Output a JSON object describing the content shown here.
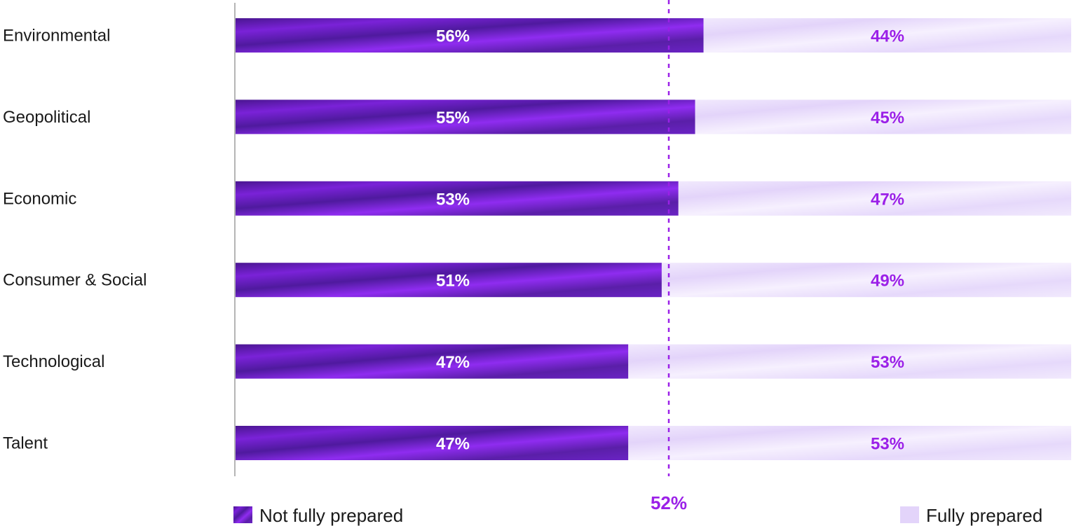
{
  "chart_data": {
    "type": "bar",
    "orientation": "horizontal",
    "stacked": true,
    "categories": [
      "Environmental",
      "Geopolitical",
      "Economic",
      "Consumer & Social",
      "Technological",
      "Talent"
    ],
    "series": [
      {
        "name": "Not fully prepared",
        "values": [
          56,
          55,
          53,
          51,
          47,
          47
        ],
        "value_labels": [
          "56%",
          "55%",
          "53%",
          "51%",
          "47%",
          "47%"
        ]
      },
      {
        "name": "Fully prepared",
        "values": [
          44,
          45,
          47,
          49,
          53,
          53
        ],
        "value_labels": [
          "44%",
          "45%",
          "47%",
          "49%",
          "53%",
          "53%"
        ]
      }
    ],
    "xlim": [
      0,
      100
    ],
    "reference_line": {
      "value": 52,
      "label": "52%"
    },
    "legend": "bottom",
    "grid": false,
    "colors": {
      "not_fully_prepared": "#5a1fa8",
      "not_fully_prepared_accent": "#9b2ff0",
      "fully_prepared": "#ece3fb",
      "fully_prepared_accent": "#f7f2fe",
      "value_label_dark_bar": "#ffffff",
      "value_label_light_bar": "#9b20e8",
      "reference_line": "#9b20e8"
    }
  }
}
